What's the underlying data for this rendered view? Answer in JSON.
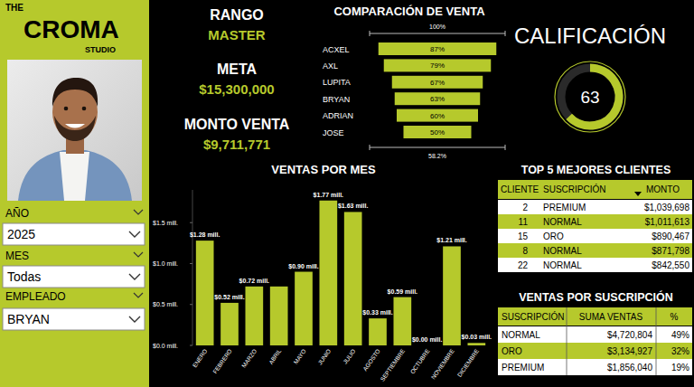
{
  "header": {
    "logo": {
      "top": "THE",
      "main": "CROMA",
      "bottom": "STUDIO"
    }
  },
  "filters": [
    {
      "label": "AÑO",
      "value": "2025"
    },
    {
      "label": "MES",
      "value": "Todas"
    },
    {
      "label": "EMPLEADO",
      "value": "BRYAN"
    }
  ],
  "kpis": [
    {
      "label": "RANGO",
      "value": "MASTER"
    },
    {
      "label": "META",
      "value": "$15,300,000"
    },
    {
      "label": "MONTO VENTA",
      "value": "$9,711,771"
    }
  ],
  "chart_data": [
    {
      "type": "funnel",
      "title": "COMPARACIÓN DE VENTA",
      "orientation": "horizontal",
      "categories": [
        "ACXEL",
        "AXL",
        "LUPITA",
        "BRYAN",
        "ADRIAN",
        "JOSE"
      ],
      "values": [
        87,
        79,
        67,
        63,
        60,
        50
      ],
      "value_labels": [
        "87%",
        "79%",
        "67%",
        "63%",
        "60%",
        "50%"
      ],
      "data_labels": true,
      "xlim": [
        0,
        100
      ],
      "color": "#b6c92c",
      "annotations": [
        "100%",
        "58.2%"
      ]
    },
    {
      "type": "gauge",
      "title": "CALIFICACIÓN",
      "values": [
        63
      ],
      "ylim": [
        0,
        100
      ],
      "data_labels": true,
      "color": "#b6c92c"
    },
    {
      "type": "bar",
      "title": "VENTAS POR MES",
      "categories": [
        "ENERO",
        "FEBRERO",
        "MARZO",
        "ABRIL",
        "MAYO",
        "JUNIO",
        "JULIO",
        "AGOSTO",
        "SEPTIEMBRE",
        "OCTUBRE",
        "NOVIEMBRE",
        "DICIEMBRE"
      ],
      "values": [
        1.28,
        0.52,
        0.72,
        0.72,
        0.9,
        1.77,
        1.63,
        0.33,
        0.59,
        0.0,
        1.21,
        0.03
      ],
      "value_labels": [
        "$1.28 mill.",
        "$0.52 mill.",
        "$0.72 mill.",
        null,
        "$0.90 mill.",
        "$1.77 mill.",
        "$1.63 mill.",
        "$0.33 mill.",
        "$0.59 mill.",
        "$0.00 mill.",
        "$1.21 mill.",
        "$0.03 mill."
      ],
      "data_labels": true,
      "ylim": [
        0,
        1.9
      ],
      "yticks": [
        {
          "value": 0,
          "label": "$0.0 mill."
        },
        {
          "value": 0.5,
          "label": "$0.5 mill."
        },
        {
          "value": 1.0,
          "label": "$1.0 mill."
        },
        {
          "value": 1.5,
          "label": "$1.5 mill."
        }
      ],
      "grid": false,
      "color": "#b6c92c"
    }
  ],
  "tables": [
    {
      "title": "TOP 5 MEJORES CLIENTES",
      "columns": [
        "CLIENTE",
        "SUSCRIPCIÓN",
        "MONTO"
      ],
      "rows": [
        [
          "2",
          "PREMIUM",
          "$1,039,698"
        ],
        [
          "11",
          "NORMAL",
          "$1,011,613"
        ],
        [
          "15",
          "ORO",
          "$890,467"
        ],
        [
          "8",
          "NORMAL",
          "$871,798"
        ],
        [
          "22",
          "NORMAL",
          "$842,550"
        ]
      ]
    },
    {
      "title": "VENTAS POR SUSCRIPCIÓN",
      "columns": [
        "SUSCRIPCIÓN",
        "SUMA VENTAS",
        "%"
      ],
      "rows": [
        [
          "NORMAL",
          "$4,720,804",
          "49%"
        ],
        [
          "ORO",
          "$3,134,927",
          "32%"
        ],
        [
          "PREMIUM",
          "$1,856,040",
          "19%"
        ]
      ]
    }
  ]
}
